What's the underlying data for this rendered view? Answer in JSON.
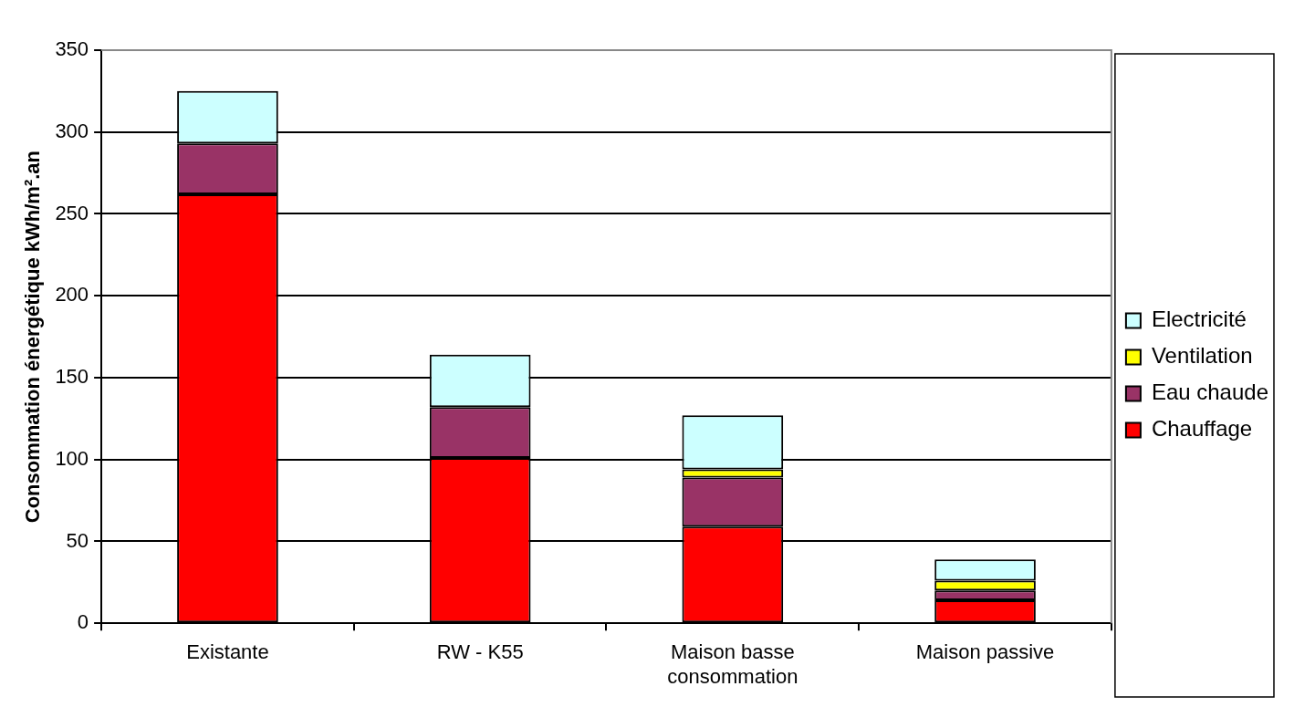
{
  "chart_data": {
    "type": "bar",
    "stacked": true,
    "ylabel": "Consommation énergétique kWh/m².an",
    "categories": [
      "Existante",
      "RW - K55",
      "Maison basse consommation",
      "Maison passive"
    ],
    "series": [
      {
        "name": "Chauffage",
        "color": "#ff0000",
        "values": [
          262,
          101,
          59,
          14
        ]
      },
      {
        "name": "Eau chaude",
        "color": "#993366",
        "values": [
          31,
          31,
          30,
          6
        ]
      },
      {
        "name": "Ventilation",
        "color": "#ffff00",
        "values": [
          null,
          null,
          5,
          6
        ]
      },
      {
        "name": "Electricité",
        "color": "#ccffff",
        "values": [
          32,
          32,
          33,
          13
        ]
      }
    ],
    "ylim": [
      0,
      350
    ],
    "yticks": [
      0,
      50,
      100,
      150,
      200,
      250,
      300,
      350
    ],
    "grid": "y",
    "legend": "right"
  }
}
